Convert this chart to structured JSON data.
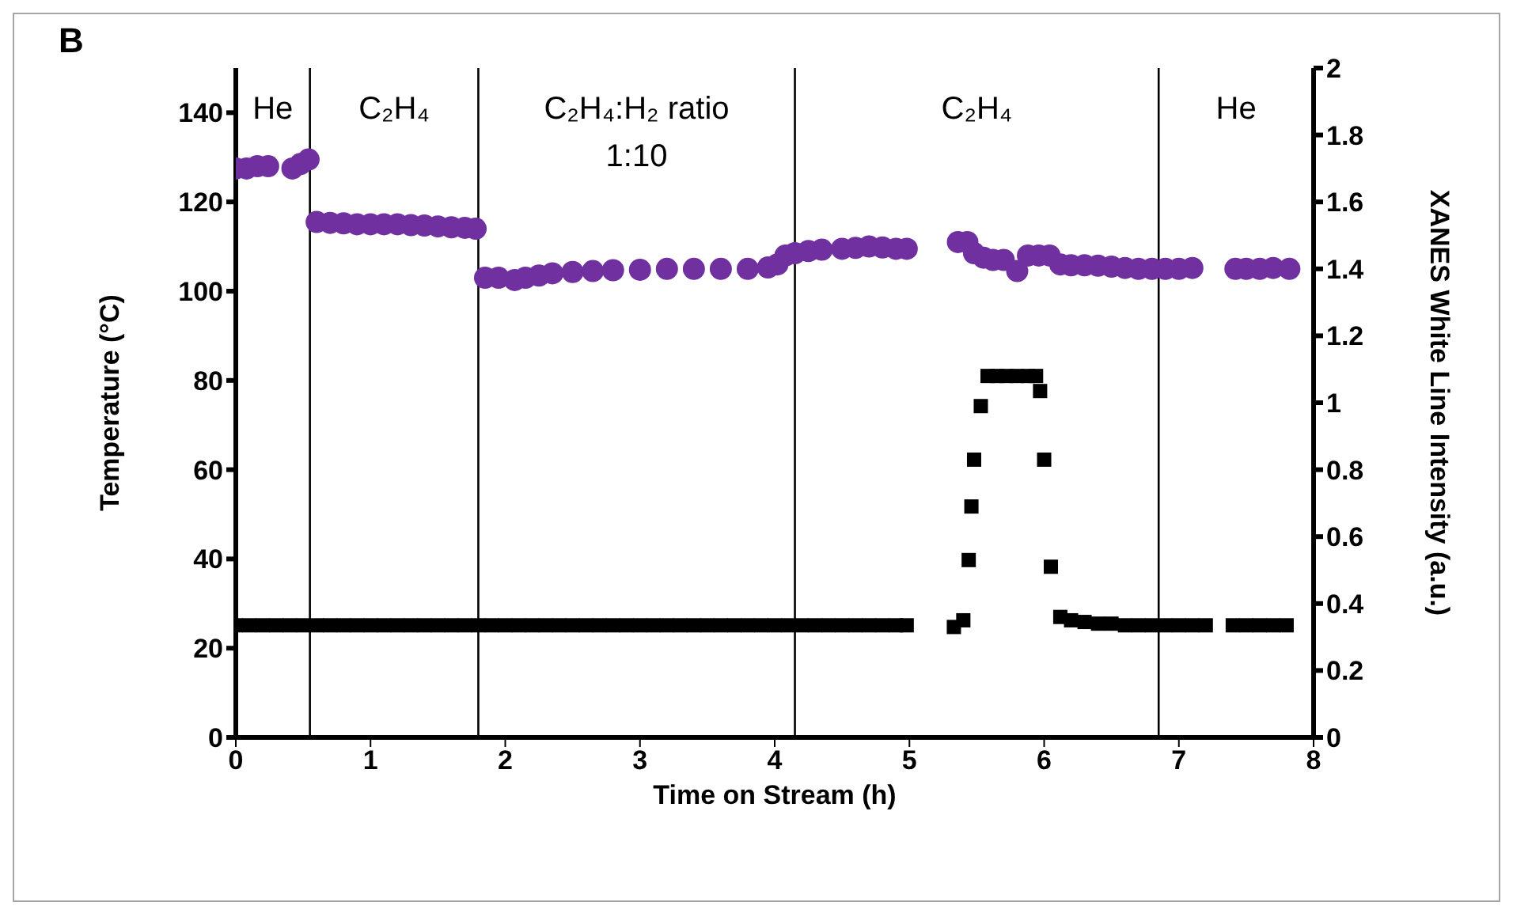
{
  "chart_data": {
    "type": "scatter",
    "xlabel": "Time on Stream (h)",
    "ylabel": "Temperature (°C)",
    "y2label": "XANES White Line Intensity (a.u.)",
    "xlim": [
      0,
      8
    ],
    "xticks": [
      0,
      1,
      2,
      3,
      4,
      5,
      6,
      7,
      8
    ],
    "ylim": [
      0,
      150
    ],
    "yticks": [
      0,
      20,
      40,
      60,
      80,
      100,
      120,
      140
    ],
    "y2lim": [
      0,
      2
    ],
    "y2ticks": [
      0,
      0.2,
      0.4,
      0.6,
      0.8,
      1,
      1.2,
      1.4,
      1.6,
      1.8,
      2
    ],
    "series": [
      {
        "color": "#7030a0",
        "marker": "circle",
        "axis": "y",
        "x": [
          0,
          0.08,
          0.16,
          0.24,
          0.42,
          0.48,
          0.54,
          0.6,
          0.7,
          0.8,
          0.9,
          1.0,
          1.1,
          1.2,
          1.3,
          1.4,
          1.5,
          1.6,
          1.7,
          1.78,
          1.85,
          1.95,
          2.07,
          2.15,
          2.25,
          2.35,
          2.5,
          2.65,
          2.8,
          3.0,
          3.2,
          3.4,
          3.6,
          3.8,
          3.95,
          4.02,
          4.08,
          4.15,
          4.25,
          4.35,
          4.5,
          4.6,
          4.7,
          4.8,
          4.9,
          4.98,
          5.36,
          5.43,
          5.48,
          5.55,
          5.62,
          5.7,
          5.8,
          5.88,
          5.96,
          6.04,
          6.12,
          6.2,
          6.3,
          6.4,
          6.5,
          6.6,
          6.7,
          6.8,
          6.9,
          7.0,
          7.1,
          7.42,
          7.5,
          7.6,
          7.7,
          7.82
        ],
        "values": [
          127.5,
          127.5,
          128,
          128,
          127.5,
          128.5,
          129.5,
          115.5,
          115.3,
          115.2,
          115,
          115,
          115,
          115,
          114.8,
          114.7,
          114.5,
          114.3,
          114.2,
          114,
          103,
          103,
          102.5,
          103,
          103.5,
          104,
          104.3,
          104.5,
          104.7,
          104.8,
          105,
          105,
          105,
          105,
          105.3,
          106,
          108,
          108.5,
          109,
          109.3,
          109.5,
          109.7,
          110,
          109.8,
          109.5,
          109.5,
          111,
          111,
          108.5,
          107.5,
          107,
          107,
          104.5,
          108,
          108,
          108,
          106,
          105.8,
          105.8,
          105.7,
          105.5,
          105.2,
          105,
          105,
          105,
          105,
          105.2,
          105,
          105,
          105,
          105.2,
          105
        ]
      },
      {
        "color": "#000000",
        "marker": "square",
        "axis": "y2",
        "x": [
          0,
          0.1,
          0.2,
          0.3,
          0.4,
          0.5,
          0.6,
          0.7,
          0.8,
          0.9,
          1.0,
          1.1,
          1.2,
          1.3,
          1.4,
          1.5,
          1.6,
          1.7,
          1.8,
          1.9,
          2.0,
          2.1,
          2.2,
          2.3,
          2.4,
          2.5,
          2.6,
          2.7,
          2.8,
          2.9,
          3.0,
          3.1,
          3.2,
          3.3,
          3.4,
          3.5,
          3.6,
          3.7,
          3.8,
          3.9,
          4.0,
          4.1,
          4.2,
          4.3,
          4.4,
          4.5,
          4.6,
          4.7,
          4.8,
          4.9,
          4.98,
          5.33,
          5.4,
          5.44,
          5.46,
          5.48,
          5.53,
          5.58,
          5.65,
          5.72,
          5.8,
          5.88,
          5.94,
          5.97,
          6.0,
          6.05,
          6.12,
          6.2,
          6.3,
          6.4,
          6.5,
          6.6,
          6.7,
          6.8,
          6.9,
          7.0,
          7.1,
          7.2,
          7.4,
          7.5,
          7.6,
          7.7,
          7.8
        ],
        "values": [
          0.335,
          0.335,
          0.335,
          0.335,
          0.335,
          0.335,
          0.335,
          0.335,
          0.335,
          0.335,
          0.335,
          0.335,
          0.335,
          0.335,
          0.335,
          0.335,
          0.335,
          0.335,
          0.335,
          0.335,
          0.335,
          0.335,
          0.335,
          0.335,
          0.335,
          0.335,
          0.335,
          0.335,
          0.335,
          0.335,
          0.335,
          0.335,
          0.335,
          0.335,
          0.335,
          0.335,
          0.335,
          0.335,
          0.335,
          0.335,
          0.335,
          0.335,
          0.335,
          0.335,
          0.335,
          0.335,
          0.335,
          0.335,
          0.335,
          0.335,
          0.335,
          0.33,
          0.35,
          0.53,
          0.69,
          0.83,
          0.99,
          1.08,
          1.08,
          1.08,
          1.08,
          1.08,
          1.08,
          1.035,
          0.83,
          0.51,
          0.36,
          0.35,
          0.345,
          0.34,
          0.34,
          0.335,
          0.335,
          0.335,
          0.335,
          0.335,
          0.335,
          0.335,
          0.335,
          0.335,
          0.335,
          0.335,
          0.335
        ]
      }
    ],
    "ref_lines": [
      {
        "axis": "x",
        "value": 0.55,
        "color": "#000000"
      },
      {
        "axis": "x",
        "value": 1.8,
        "color": "#000000"
      },
      {
        "axis": "x",
        "value": 4.15,
        "color": "#000000"
      },
      {
        "axis": "x",
        "value": 6.85,
        "color": "#000000"
      }
    ],
    "annotations": [
      "B",
      "He",
      "C₂H₄",
      "C₂H₄:H₂ ratio 1:10",
      "C₂H₄",
      "He"
    ]
  }
}
